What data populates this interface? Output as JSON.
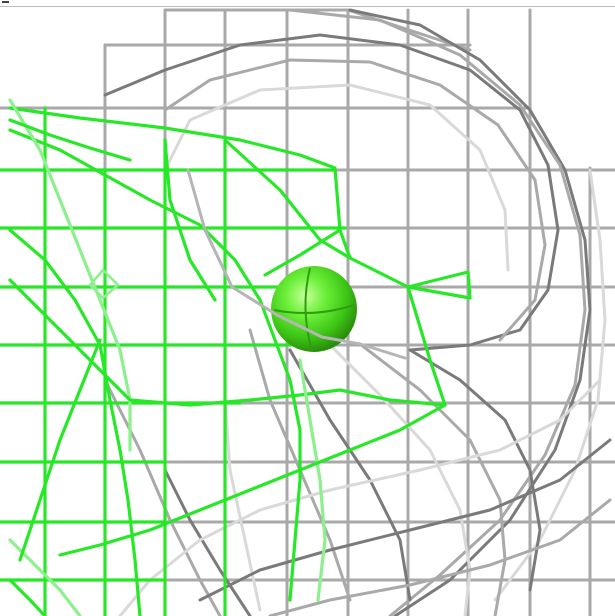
{
  "scene": {
    "background": "#ffffff",
    "colors": {
      "grey_mesh": "#a9a9a9",
      "grey_mesh_dark": "#7a7a7a",
      "grey_mesh_light": "#d9d9d9",
      "green_mesh": "#27e827",
      "green_mesh_light": "#8cf08c",
      "atom_sphere": "#4fe01f"
    },
    "objects": [
      {
        "name": "grey-electron-density-mesh",
        "color": "grey"
      },
      {
        "name": "green-electron-density-mesh",
        "color": "green"
      },
      {
        "name": "ion-sphere",
        "color": "green"
      }
    ]
  }
}
